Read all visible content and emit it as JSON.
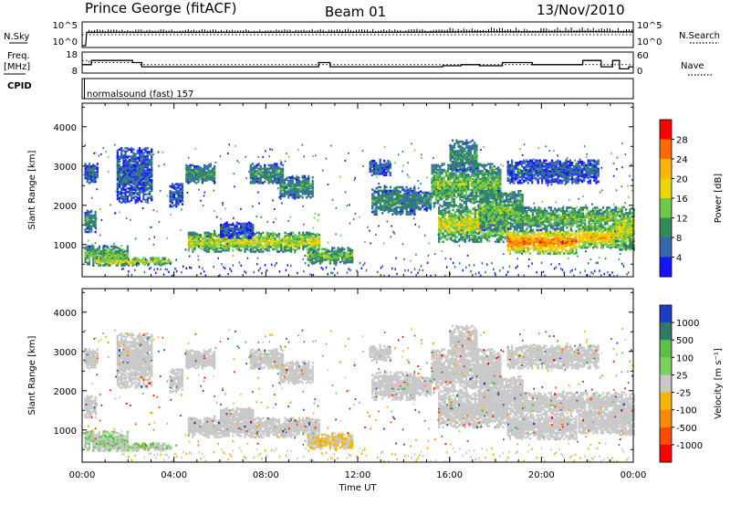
{
  "header": {
    "station": "Prince George (fitACF)",
    "beam": "Beam 01",
    "date": "13/Nov/2010"
  },
  "left_labels": {
    "nsky": "N.Sky",
    "freq_line1": "Freq.",
    "freq_line2": "[MHz]",
    "cpid": "CPID"
  },
  "right_labels": {
    "nsearch": "N.Search",
    "nave": "Nave"
  },
  "cpid_text": "normalsound (fast) 157",
  "chart_data": [
    {
      "type": "line",
      "panel": "noise",
      "series": [
        {
          "name": "N.Sky",
          "style": "solid",
          "x": [
            0,
            0.15,
            0.2,
            1,
            2,
            3,
            4,
            5,
            6,
            7,
            8,
            9,
            10,
            11,
            12,
            13,
            14,
            15,
            16,
            17,
            18,
            19,
            20,
            21,
            22,
            23,
            24
          ],
          "y": [
            1,
            1,
            4500,
            4600,
            4700,
            4500,
            4600,
            4500,
            4700,
            4600,
            4500,
            4700,
            4600,
            4500,
            4800,
            4700,
            4900,
            5200,
            5600,
            6000,
            6200,
            6000,
            5800,
            6400,
            6600,
            6200,
            5800
          ]
        },
        {
          "name": "N.Search",
          "style": "dotted",
          "x": [
            0,
            24
          ],
          "y": [
            1000,
            1000
          ]
        }
      ],
      "ytick_labels": [
        "10^5",
        "10^0"
      ],
      "right_ytick_labels": [
        "10^5",
        "10^0"
      ]
    },
    {
      "type": "line",
      "panel": "frequency",
      "series": [
        {
          "name": "Freq.",
          "style": "solid",
          "x": [
            0,
            0.4,
            0.4,
            2.2,
            2.2,
            2.6,
            2.6,
            10.3,
            10.3,
            10.8,
            10.8,
            15.7,
            15.7,
            16.5,
            16.5,
            17.3,
            17.3,
            18.3,
            18.3,
            19.6,
            19.6,
            21.8,
            21.8,
            22.6,
            22.6,
            23.1,
            23.1,
            23.4,
            23.4,
            23.8,
            23.8,
            24
          ],
          "y": [
            12,
            12,
            14,
            14,
            13,
            13,
            11,
            11,
            13,
            13,
            11,
            11,
            11.5,
            11.5,
            12,
            12,
            11.5,
            11.5,
            13,
            13,
            12,
            12,
            14,
            14,
            11,
            11,
            14,
            14,
            10,
            10,
            11,
            11
          ]
        },
        {
          "name": "Nave",
          "style": "dotted",
          "x": [
            0,
            0.3,
            0.3,
            2.5,
            2.5,
            24
          ],
          "y": [
            14,
            14,
            13,
            13,
            12,
            12
          ]
        }
      ],
      "ylim": [
        8,
        18
      ],
      "ytick_labels": [
        "18",
        "8"
      ],
      "right_ytick_labels": [
        "60",
        "0"
      ]
    },
    {
      "type": "heatmap",
      "panel": "power",
      "ylabel": "Slant Range [km]",
      "ylim": [
        180,
        4600
      ],
      "yticks": [
        1000,
        2000,
        3000,
        4000
      ],
      "colorbar": {
        "label": "Power [dB]",
        "ticks": [
          "28",
          "24",
          "20",
          "16",
          "12",
          "8",
          "4"
        ],
        "colors": [
          "#ff0000",
          "#ff6a00",
          "#ffb400",
          "#ebd600",
          "#6ec84a",
          "#2e8b57",
          "#3468a8",
          "#1414ff"
        ]
      },
      "blobs": [
        {
          "t0": 0.1,
          "t1": 2.0,
          "r0": 500,
          "r1": 1000,
          "level": 3
        },
        {
          "t0": 0.5,
          "t1": 3.9,
          "r0": 500,
          "r1": 700,
          "level": 4
        },
        {
          "t0": 0.1,
          "t1": 0.6,
          "r0": 1350,
          "r1": 1900,
          "level": 2
        },
        {
          "t0": 0.1,
          "t1": 0.7,
          "r0": 2600,
          "r1": 3100,
          "level": 1
        },
        {
          "t0": 1.5,
          "t1": 3.0,
          "r0": 2100,
          "r1": 3500,
          "level": 1
        },
        {
          "t0": 3.8,
          "t1": 4.4,
          "r0": 2000,
          "r1": 2600,
          "level": 1
        },
        {
          "t0": 4.5,
          "t1": 5.8,
          "r0": 2600,
          "r1": 3100,
          "level": 2
        },
        {
          "t0": 7.3,
          "t1": 8.7,
          "r0": 2600,
          "r1": 3100,
          "level": 2
        },
        {
          "t0": 8.6,
          "t1": 10.0,
          "r0": 2200,
          "r1": 2800,
          "level": 2
        },
        {
          "t0": 4.6,
          "t1": 10.3,
          "r0": 850,
          "r1": 1350,
          "level": 4
        },
        {
          "t0": 6.0,
          "t1": 7.4,
          "r0": 1200,
          "r1": 1600,
          "level": 1
        },
        {
          "t0": 9.8,
          "t1": 11.8,
          "r0": 550,
          "r1": 950,
          "level": 3
        },
        {
          "t0": 12.6,
          "t1": 14.5,
          "r0": 1800,
          "r1": 2500,
          "level": 2
        },
        {
          "t0": 12.5,
          "t1": 13.4,
          "r0": 2800,
          "r1": 3200,
          "level": 1
        },
        {
          "t0": 14.0,
          "t1": 15.2,
          "r0": 1900,
          "r1": 2400,
          "level": 2
        },
        {
          "t0": 15.2,
          "t1": 18.2,
          "r0": 2000,
          "r1": 3100,
          "level": 3
        },
        {
          "t0": 15.5,
          "t1": 18.5,
          "r0": 1100,
          "r1": 2000,
          "level": 4
        },
        {
          "t0": 16.0,
          "t1": 17.2,
          "r0": 2900,
          "r1": 3700,
          "level": 2
        },
        {
          "t0": 17.3,
          "t1": 19.2,
          "r0": 1400,
          "r1": 2400,
          "level": 3
        },
        {
          "t0": 18.5,
          "t1": 21.5,
          "r0": 800,
          "r1": 1400,
          "level": 6
        },
        {
          "t0": 18.8,
          "t1": 23.2,
          "r0": 1400,
          "r1": 2000,
          "level": 3
        },
        {
          "t0": 18.5,
          "t1": 22.5,
          "r0": 2600,
          "r1": 3200,
          "level": 1
        },
        {
          "t0": 21.6,
          "t1": 23.3,
          "r0": 950,
          "r1": 1500,
          "level": 5
        },
        {
          "t0": 23.2,
          "t1": 24.0,
          "r0": 900,
          "r1": 2000,
          "level": 4
        }
      ]
    },
    {
      "type": "heatmap",
      "panel": "velocity",
      "xlabel": "Time UT",
      "ylabel": "Slant Range [km]",
      "ylim": [
        180,
        4600
      ],
      "yticks": [
        1000,
        2000,
        3000,
        4000
      ],
      "xlim": [
        0,
        24
      ],
      "xtick_labels": [
        "00:00",
        "04:00",
        "08:00",
        "12:00",
        "16:00",
        "20:00",
        "00:00"
      ],
      "colorbar": {
        "label": "Velocity [m s⁻¹]",
        "ticks": [
          "1000",
          "500",
          "100",
          "25",
          "-25",
          "-100",
          "-500",
          "-1000"
        ],
        "colors": [
          "#1e3cc8",
          "#2f7b63",
          "#5cbf48",
          "#7ad35c",
          "#c8c8c8",
          "#f5b400",
          "#ff8a00",
          "#ff4a00",
          "#ff0000"
        ]
      }
    }
  ]
}
